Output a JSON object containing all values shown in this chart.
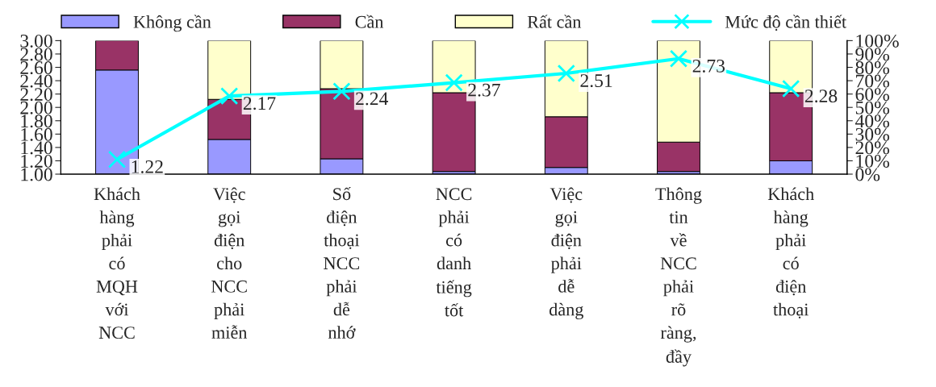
{
  "chart_data": {
    "type": "bar",
    "stacked": true,
    "categories": [
      "Khách hàng phải có MQH với NCC",
      "Việc gọi điện cho NCC phải miễn",
      "Số điện thoại NCC phải dễ nhớ",
      "NCC phải có danh tiếng tốt",
      "Việc gọi điện phải dễ dàng",
      "Thông tin về NCC phải rõ ràng, đầy",
      "Khách hàng phải có điện thoại"
    ],
    "series": [
      {
        "name": "Không cần",
        "color": "#9999ff",
        "axis": "y2",
        "values": [
          78,
          26,
          11.5,
          2,
          5,
          2,
          10
        ]
      },
      {
        "name": "Cần",
        "color": "#993366",
        "axis": "y2",
        "values": [
          22,
          30,
          52.5,
          59,
          38,
          22,
          51
        ]
      },
      {
        "name": "Rất cần",
        "color": "#ffffcc",
        "axis": "y2",
        "values": [
          0,
          44,
          36,
          39,
          57,
          76,
          39
        ]
      },
      {
        "name": "Mức độ cần thiết",
        "type": "line",
        "color": "#00ffff",
        "axis": "y",
        "marker": "cross",
        "data_labels": true,
        "values": [
          1.22,
          2.17,
          2.24,
          2.37,
          2.51,
          2.73,
          2.28
        ]
      }
    ],
    "ylim": [
      1,
      3
    ],
    "yticks": [
      {
        "value": 1,
        "label": "1.00"
      },
      {
        "value": 1.2,
        "label": "1.20"
      },
      {
        "value": 1.4,
        "label": "1.40"
      },
      {
        "value": 1.6,
        "label": "1.60"
      },
      {
        "value": 1.8,
        "label": "1.80"
      },
      {
        "value": 2,
        "label": "2.00"
      },
      {
        "value": 2.2,
        "label": "2.20"
      },
      {
        "value": 2.4,
        "label": "2.40"
      },
      {
        "value": 2.6,
        "label": "2.60"
      },
      {
        "value": 2.8,
        "label": "2.80"
      },
      {
        "value": 3,
        "label": "3.00"
      }
    ],
    "y2lim": [
      0,
      100
    ],
    "y2ticks": [
      {
        "value": 0,
        "label": "0%"
      },
      {
        "value": 10,
        "label": "10%"
      },
      {
        "value": 20,
        "label": "20%"
      },
      {
        "value": 30,
        "label": "30%"
      },
      {
        "value": 40,
        "label": "40%"
      },
      {
        "value": 50,
        "label": "50%"
      },
      {
        "value": 60,
        "label": "60%"
      },
      {
        "value": 70,
        "label": "70%"
      },
      {
        "value": 80,
        "label": "80%"
      },
      {
        "value": 90,
        "label": "90%"
      },
      {
        "value": 100,
        "label": "100%"
      }
    ],
    "legend": "top",
    "grid": false
  }
}
